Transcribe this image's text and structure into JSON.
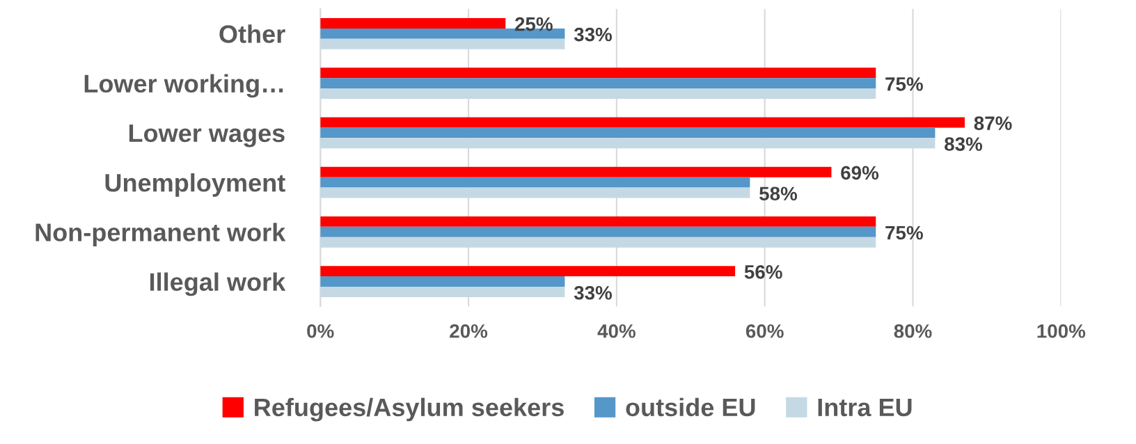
{
  "chart_data": {
    "type": "bar",
    "orientation": "horizontal",
    "categories": [
      "Other",
      "Lower working…",
      "Lower wages",
      "Unemployment",
      "Non-permanent work",
      "Illegal work"
    ],
    "series": [
      {
        "name": "Refugees/Asylum seekers",
        "color": "#ff0000",
        "values": [
          25,
          75,
          87,
          69,
          75,
          56
        ],
        "value_labels": [
          "25%",
          null,
          "87%",
          "69%",
          null,
          "56%"
        ]
      },
      {
        "name": "outside EU",
        "color": "#5597c8",
        "values": [
          33,
          75,
          83,
          58,
          75,
          33
        ],
        "value_labels": [
          "33%",
          "75%",
          null,
          null,
          "75%",
          null
        ]
      },
      {
        "name": "Intra EU",
        "color": "#c5d9e5",
        "values": [
          33,
          75,
          83,
          58,
          75,
          33
        ],
        "value_labels": [
          null,
          null,
          "83%",
          "58%",
          null,
          "33%"
        ]
      }
    ],
    "xlim": [
      0,
      100
    ],
    "xticks": [
      {
        "value": 0,
        "label": "0%"
      },
      {
        "value": 20,
        "label": "20%"
      },
      {
        "value": 40,
        "label": "40%"
      },
      {
        "value": 60,
        "label": "60%"
      },
      {
        "value": 80,
        "label": "80%"
      },
      {
        "value": 100,
        "label": "100%"
      }
    ],
    "grid": "x",
    "legend": "bottom"
  }
}
